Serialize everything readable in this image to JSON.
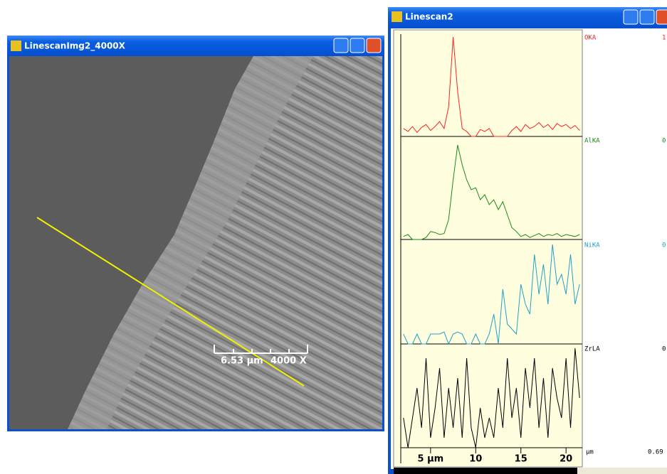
{
  "image_window": {
    "title": "LinescanImg2_4000X",
    "scale_length": "6.53 µm",
    "magnification": "4000 X"
  },
  "linescan_window": {
    "title": "Linescan2",
    "x": [
      2,
      2.5,
      3,
      3.5,
      4,
      4.5,
      5,
      5.5,
      6,
      6.5,
      7,
      7.5,
      8,
      8.5,
      9,
      9.5,
      10,
      10.5,
      11,
      11.5,
      12,
      12.5,
      13,
      13.5,
      14,
      14.5,
      15,
      15.5,
      16,
      16.5,
      17,
      17.5,
      18,
      18.5,
      19,
      19.5,
      20,
      20.5,
      21,
      21.5
    ],
    "xlim": [
      1.7,
      21.8
    ],
    "xticks": [
      {
        "value": 5,
        "label": "5 µm"
      },
      10,
      15,
      20
    ],
    "x_unit": "µm",
    "x_end_value": "0.69",
    "channels": [
      {
        "name": "OKA",
        "max_label": "1",
        "color": "#ff2020",
        "values": [
          0.08,
          0.05,
          0.1,
          0.04,
          0.09,
          0.12,
          0.06,
          0.1,
          0.15,
          0.08,
          0.3,
          1.0,
          0.45,
          0.08,
          0.05,
          0,
          0,
          0.07,
          0.05,
          0.08,
          0,
          0,
          0,
          0,
          0.06,
          0.1,
          0.05,
          0.12,
          0.08,
          0.1,
          0.14,
          0.09,
          0.12,
          0.07,
          0.13,
          0.1,
          0.12,
          0.08,
          0.11,
          0.06
        ]
      },
      {
        "name": "AlKA",
        "max_label": "0",
        "color": "#1a8a1a",
        "values": [
          0.03,
          0.05,
          0,
          0,
          0,
          0.02,
          0.08,
          0.07,
          0.05,
          0.06,
          0.2,
          0.6,
          0.95,
          0.75,
          0.6,
          0.5,
          0.52,
          0.4,
          0.45,
          0.35,
          0.4,
          0.3,
          0.38,
          0.25,
          0.12,
          0.08,
          0.03,
          0.05,
          0.02,
          0.04,
          0.06,
          0.03,
          0.05,
          0.04,
          0.06,
          0.03,
          0.05,
          0.04,
          0.03,
          0.05
        ]
      },
      {
        "name": "NiKA",
        "max_label": "0",
        "color": "#20a0c8",
        "values": [
          0.1,
          0,
          0,
          0.1,
          0,
          0,
          0.1,
          0.1,
          0.1,
          0.12,
          0,
          0.1,
          0.12,
          0.1,
          0,
          0,
          0.1,
          0,
          0,
          0.1,
          0.3,
          0,
          0.55,
          0.2,
          0.15,
          0.1,
          0.6,
          0.4,
          0.3,
          0.9,
          0.5,
          0.8,
          0.4,
          1.0,
          0.6,
          0.7,
          0.5,
          0.9,
          0.4,
          0.6
        ]
      },
      {
        "name": "ZrLA",
        "max_label": "0",
        "color": "#000000",
        "values": [
          0.3,
          0,
          0.3,
          0.6,
          0.2,
          0.9,
          0.1,
          0.4,
          0.8,
          0.1,
          0.6,
          0.2,
          0.7,
          0.1,
          0.9,
          0.2,
          0,
          0.4,
          0.1,
          0.3,
          0.1,
          0.6,
          0.2,
          0.9,
          0.3,
          0.6,
          0.1,
          0.8,
          0.4,
          0.9,
          0.2,
          0.7,
          0.1,
          0.8,
          0.5,
          0.3,
          0.9,
          0.2,
          1.0,
          0.5
        ]
      }
    ]
  }
}
